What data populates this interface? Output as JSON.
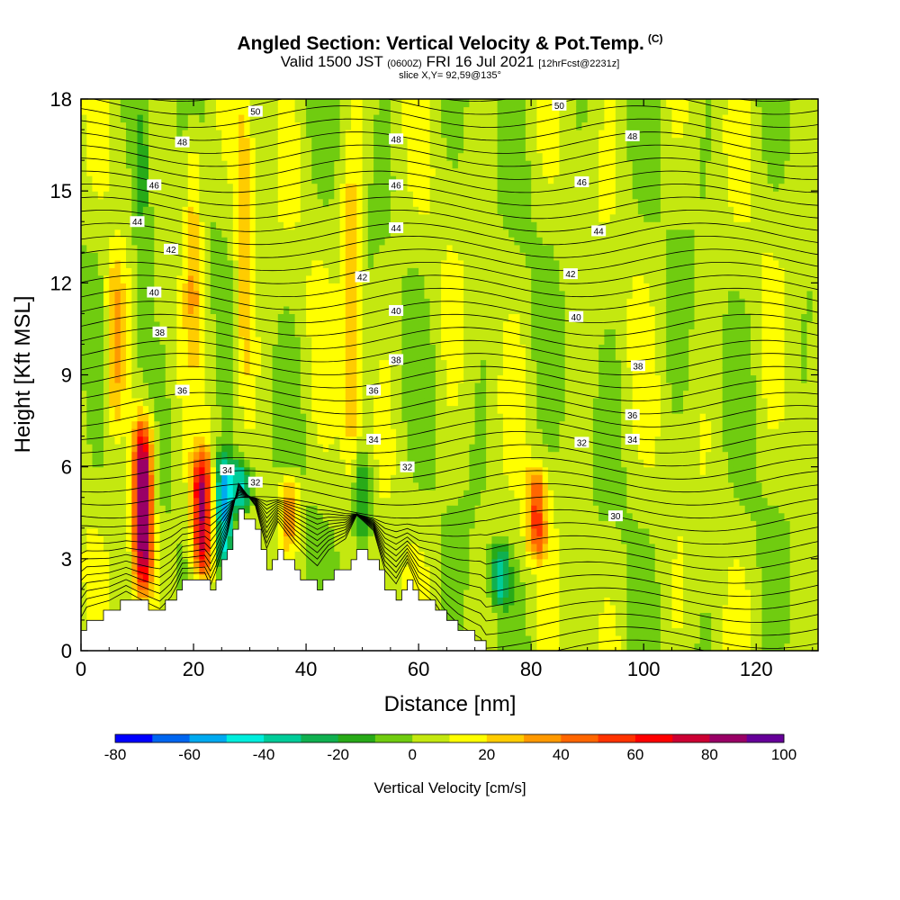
{
  "title": {
    "main": "Angled Section: Vertical Velocity & Pot.Temp.",
    "copyright": "(C)",
    "valid_prefix": "Valid 1500 JST",
    "utc": "(0600Z)",
    "valid_date": "FRI 16 Jul 2021",
    "forecast": "[12hrFcst@2231z]",
    "slice": "slice X,Y= 92,59@135°"
  },
  "chart_data": {
    "type": "heatmap",
    "xlabel": "Distance [nm]",
    "ylabel": "Height [Kft MSL]",
    "xlim": [
      0,
      131
    ],
    "ylim": [
      0,
      18
    ],
    "x_ticks": [
      0,
      20,
      40,
      60,
      80,
      100,
      120
    ],
    "y_ticks": [
      0,
      3,
      6,
      9,
      12,
      15,
      18
    ],
    "colorbar": {
      "label": "Vertical Velocity [cm/s]",
      "bounds": [
        -80,
        -70,
        -60,
        -50,
        -40,
        -30,
        -20,
        -10,
        0,
        10,
        20,
        30,
        40,
        50,
        60,
        70,
        80,
        90,
        100
      ],
      "tick_labels": [
        "-80",
        "-60",
        "-40",
        "-20",
        "0",
        "20",
        "40",
        "60",
        "80",
        "100"
      ],
      "colors": [
        "#0000ff",
        "#0066f0",
        "#00aaf0",
        "#00eedd",
        "#00cc99",
        "#10b050",
        "#28aa18",
        "#70cc10",
        "#c4e810",
        "#ffff00",
        "#ffcc00",
        "#ff9900",
        "#ff6600",
        "#ff3300",
        "#ff0000",
        "#cc0033",
        "#990066",
        "#660099"
      ]
    },
    "velocity_features": [
      {
        "x": 11,
        "z_min": 1.8,
        "z_max": 7.5,
        "w": 95
      },
      {
        "x": 21.5,
        "z_min": 2.3,
        "z_max": 6.5,
        "w": 75
      },
      {
        "x": 25.5,
        "z_min": 2.5,
        "z_max": 6.5,
        "w": -60
      },
      {
        "x": 28.5,
        "z_min": 4.5,
        "z_max": 6.2,
        "w": -45
      },
      {
        "x": 37,
        "z_min": 3.3,
        "z_max": 5.8,
        "w": 35
      },
      {
        "x": 48,
        "z_min": 6.0,
        "z_max": 16.0,
        "w": 30
      },
      {
        "x": 50,
        "z_min": 3.4,
        "z_max": 6.5,
        "w": -25
      },
      {
        "x": 74.5,
        "z_min": 1.5,
        "z_max": 3.5,
        "w": -35
      },
      {
        "x": 81,
        "z_min": 3.0,
        "z_max": 6.0,
        "w": 45
      },
      {
        "x": 6,
        "z_min": 7.0,
        "z_max": 13.0,
        "w": 30
      },
      {
        "x": 11,
        "z_min": 9.0,
        "z_max": 18.0,
        "w": -20
      },
      {
        "x": 20,
        "z_min": 10.0,
        "z_max": 17.5,
        "w": 25
      },
      {
        "x": 29,
        "z_min": 8.0,
        "z_max": 18.0,
        "w": 25
      }
    ],
    "terrain": [
      {
        "x": 0,
        "z": 0.7
      },
      {
        "x": 1,
        "z": 1.0
      },
      {
        "x": 5,
        "z": 1.3
      },
      {
        "x": 8,
        "z": 1.65
      },
      {
        "x": 14,
        "z": 1.35
      },
      {
        "x": 16,
        "z": 1.7
      },
      {
        "x": 17,
        "z": 2.0
      },
      {
        "x": 18,
        "z": 2.35
      },
      {
        "x": 22,
        "z": 2.35
      },
      {
        "x": 23,
        "z": 2.0
      },
      {
        "x": 24,
        "z": 2.35
      },
      {
        "x": 26,
        "z": 3.3
      },
      {
        "x": 28,
        "z": 4.6
      },
      {
        "x": 31,
        "z": 3.9
      },
      {
        "x": 33,
        "z": 2.7
      },
      {
        "x": 35,
        "z": 3.35
      },
      {
        "x": 38,
        "z": 2.65
      },
      {
        "x": 40,
        "z": 2.3
      },
      {
        "x": 42,
        "z": 2.0
      },
      {
        "x": 44,
        "z": 2.4
      },
      {
        "x": 47,
        "z": 2.7
      },
      {
        "x": 49,
        "z": 3.35
      },
      {
        "x": 52,
        "z": 3.0
      },
      {
        "x": 54,
        "z": 2.0
      },
      {
        "x": 56,
        "z": 1.7
      },
      {
        "x": 58,
        "z": 2.35
      },
      {
        "x": 60,
        "z": 1.7
      },
      {
        "x": 63,
        "z": 1.4
      },
      {
        "x": 65,
        "z": 1.0
      },
      {
        "x": 67,
        "z": 0.7
      },
      {
        "x": 71,
        "z": 0.3
      },
      {
        "x": 72,
        "z": 0
      }
    ],
    "theta_contours": [
      {
        "value": 30,
        "label_x": 95,
        "label_z": 4.4
      },
      {
        "value": 32,
        "label_x": 31,
        "label_z": 5.5
      },
      {
        "value": 32,
        "label_x": 58,
        "label_z": 6.0
      },
      {
        "value": 32,
        "label_x": 89,
        "label_z": 6.8
      },
      {
        "value": 34,
        "label_x": 26,
        "label_z": 5.9
      },
      {
        "value": 34,
        "label_x": 52,
        "label_z": 6.9
      },
      {
        "value": 34,
        "label_x": 98,
        "label_z": 6.9
      },
      {
        "value": 36,
        "label_x": 18,
        "label_z": 8.5
      },
      {
        "value": 36,
        "label_x": 52,
        "label_z": 8.5
      },
      {
        "value": 36,
        "label_x": 98,
        "label_z": 7.7
      },
      {
        "value": 38,
        "label_x": 14,
        "label_z": 10.4
      },
      {
        "value": 38,
        "label_x": 56,
        "label_z": 9.5
      },
      {
        "value": 38,
        "label_x": 99,
        "label_z": 9.3
      },
      {
        "value": 40,
        "label_x": 13,
        "label_z": 11.7
      },
      {
        "value": 40,
        "label_x": 56,
        "label_z": 11.1
      },
      {
        "value": 40,
        "label_x": 88,
        "label_z": 10.9
      },
      {
        "value": 42,
        "label_x": 16,
        "label_z": 13.1
      },
      {
        "value": 42,
        "label_x": 50,
        "label_z": 12.2
      },
      {
        "value": 42,
        "label_x": 87,
        "label_z": 12.3
      },
      {
        "value": 44,
        "label_x": 10,
        "label_z": 14.0
      },
      {
        "value": 44,
        "label_x": 56,
        "label_z": 13.8
      },
      {
        "value": 44,
        "label_x": 92,
        "label_z": 13.7
      },
      {
        "value": 46,
        "label_x": 13,
        "label_z": 15.2
      },
      {
        "value": 46,
        "label_x": 56,
        "label_z": 15.2
      },
      {
        "value": 46,
        "label_x": 89,
        "label_z": 15.3
      },
      {
        "value": 48,
        "label_x": 18,
        "label_z": 16.6
      },
      {
        "value": 48,
        "label_x": 56,
        "label_z": 16.7
      },
      {
        "value": 48,
        "label_x": 98,
        "label_z": 16.8
      },
      {
        "value": 50,
        "label_x": 31,
        "label_z": 17.6
      },
      {
        "value": 50,
        "label_x": 85,
        "label_z": 17.8
      }
    ]
  }
}
